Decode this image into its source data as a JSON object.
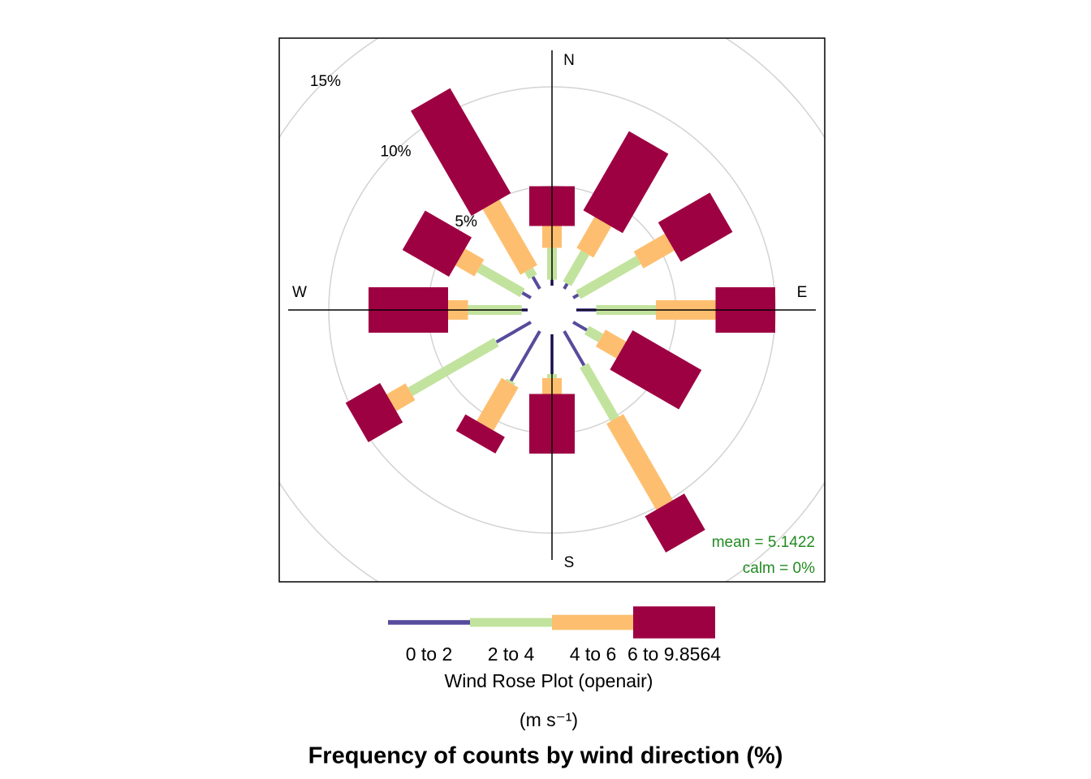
{
  "chart_data": {
    "type": "windrose",
    "directions": [
      0,
      30,
      60,
      90,
      120,
      150,
      180,
      210,
      240,
      270,
      300,
      330
    ],
    "compass": [
      "N",
      "E",
      "S",
      "W"
    ],
    "series": [
      {
        "name": "0 to 2",
        "color": "#574b9c",
        "values": [
          0.3,
          0.3,
          0.3,
          1.0,
          0.8,
          2.0,
          2.0,
          2.9,
          2.0,
          0.3,
          0.5,
          0.7
        ]
      },
      {
        "name": "2 to 4",
        "color": "#c2e39e",
        "values": [
          1.6,
          1.8,
          3.5,
          3.0,
          0.8,
          3.1,
          0.2,
          0.1,
          5.0,
          2.7,
          2.5,
          0.4
        ]
      },
      {
        "name": "4 to 6",
        "color": "#fdbf6f",
        "values": [
          1.1,
          1.8,
          1.8,
          3.0,
          1.2,
          5.0,
          0.8,
          2.5,
          1.1,
          1.0,
          1.1,
          3.8
        ]
      },
      {
        "name": "6 to 9.8564",
        "color": "#9e0142",
        "values": [
          2.0,
          4.6,
          3.0,
          3.0,
          4.0,
          2.1,
          3.0,
          0.95,
          2.0,
          4.0,
          2.7,
          6.1
        ]
      }
    ],
    "rticks": [
      {
        "value": 5,
        "label": "5%"
      },
      {
        "value": 10,
        "label": "10%"
      },
      {
        "value": 15,
        "label": "15%"
      }
    ],
    "grid": true,
    "annotations": [
      "mean = 5.1422",
      "calm = 0%"
    ],
    "legend_title": "Wind Rose Plot (openair)",
    "legend_units": "(m s⁻¹)",
    "xlabel": "Frequency of counts by wind direction (%)"
  }
}
